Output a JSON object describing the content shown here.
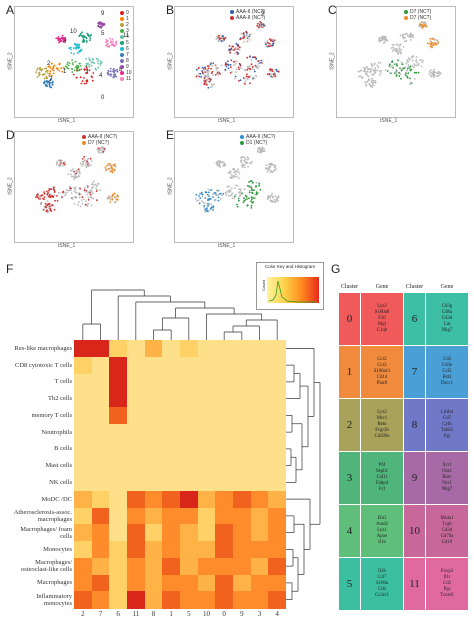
{
  "panels": {
    "A": {
      "label": "A",
      "xlabel": "tSNE_1",
      "ylabel": "tSNE_2",
      "legend": [
        "0",
        "1",
        "2",
        "3",
        "4",
        "5",
        "6",
        "7",
        "8",
        "9",
        "10",
        "11"
      ],
      "cluster_labels": [
        "9",
        "10",
        "6",
        "5",
        "11",
        "2",
        "1",
        "3",
        "4",
        "8",
        "7",
        "0"
      ]
    },
    "B": {
      "label": "B",
      "xlabel": "tSNE_1",
      "ylabel": "tSNE_2",
      "legend": [
        "AAA-II (NC?)",
        "AAA-II (NC?)"
      ],
      "cluster_labels": [
        "9"
      ]
    },
    "C": {
      "label": "C",
      "xlabel": "tSNE_1",
      "ylabel": "tSNE_2",
      "legend": [
        "D7 (NC?)",
        "D7 (NC?)"
      ]
    },
    "D": {
      "label": "D",
      "xlabel": "tSNE_1",
      "ylabel": "tSNE_2",
      "legend": [
        "AAA-II (NC?)",
        "D7 (NC?)"
      ]
    },
    "E": {
      "label": "E",
      "xlabel": "tSNE_1",
      "ylabel": "tSNE_2",
      "legend": [
        "AAA-II (NC?)",
        "D1 (NC?)"
      ]
    }
  },
  "F": {
    "label": "F",
    "key_title": "Color Key and Histogram",
    "key_ylabel": "Count",
    "rows": [
      "Res-like macrophages",
      "CD8 cytotoxic T cells",
      "T cells",
      "Th2 cells",
      "memory T cells",
      "Neutrophils",
      "B cells",
      "Mast cells",
      "NK cells",
      "MoDC /DC",
      "Atherosclerosis-assoc. macrophages",
      "Macrophages/ foam cells",
      "Monocytes",
      "Macrophages/ osteoclast-like cells",
      "Macrophages",
      "Inflammatory monocytes"
    ],
    "cols": [
      "2",
      "7",
      "6",
      "11",
      "8",
      "1",
      "5",
      "10",
      "0",
      "9",
      "3",
      "4"
    ]
  },
  "G": {
    "label": "G",
    "headers": [
      "Cluster",
      "Gene",
      "Cluster",
      "Gene"
    ],
    "rows": [
      {
        "c1": "0",
        "g1": "Lyz2\nS100a8\nF10\nMgl\nC1qb",
        "col1": "#f05a5a",
        "c2": "6",
        "g2": "Cd3g\nCd8a\nCd3d\nLat\nNkg7",
        "col2": "#3dbfa6"
      },
      {
        "c1": "1",
        "g1": "Ccr2\nCcr2\nS100a11\nCd14\nPlac8",
        "col1": "#f08a3c",
        "c2": "7",
        "g2": "Cd3\nCd3e\nCcl5\nBst2\nDscc1",
        "col2": "#4a9fd6"
      },
      {
        "c1": "2",
        "g1": "Lyz2\nMrc1\nRetn\nFcgr2b\nCd209a",
        "col1": "#a8a25a",
        "c2": "8",
        "g2": "Lilrb4\nCd7\nCyth\nTubb5\nFgr",
        "col2": "#7078c8"
      },
      {
        "c1": "3",
        "g1": "Pf4\nSeph1\nCsf1r\nFabp4\nFcl",
        "col1": "#4fb57a",
        "c2": "9",
        "g2": "Xcr1\nGbs1\nRorc\nNcr1\nNkg7",
        "col2": "#a86aa6"
      },
      {
        "c1": "4",
        "g1": "Ebi3\nAmd2\nLyz1\nApoe\nIl1b",
        "col1": "#5fbf7a",
        "c2": "10",
        "g2": "Ms4a1\nTcgb\nCd3d\nCd79a\nCd19",
        "col2": "#c8689a"
      },
      {
        "c1": "5",
        "g1": "Il1b\nCcl7\nS100a\nCd2\nCx3cr1",
        "col1": "#3cbfa0",
        "c2": "11",
        "g2": "Foxp3\nIl1r\nCd2\nPgs\nTxnrd1",
        "col2": "#e06aa0"
      }
    ]
  }
}
